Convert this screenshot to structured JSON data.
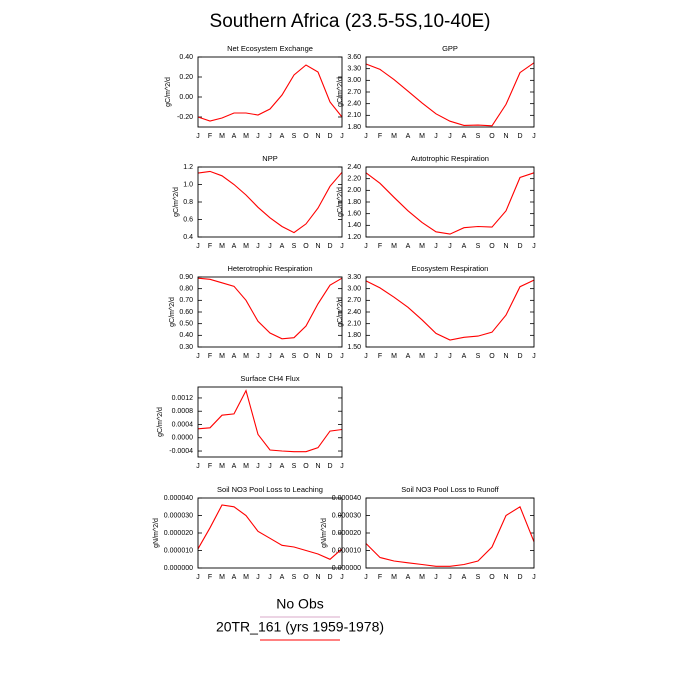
{
  "title": "Southern Africa (23.5-5S,10-40E)",
  "legend": [
    {
      "label": "No Obs",
      "color": "#d8a8c8"
    },
    {
      "label": "20TR_161 (yrs 1959-1978)",
      "color": "#ff0000"
    }
  ],
  "chart_data": [
    {
      "type": "line",
      "title": "Net Ecosystem Exchange",
      "ylabel": "gC/m^2/d",
      "color": "#ff0000",
      "categories": [
        "J",
        "F",
        "M",
        "A",
        "M",
        "J",
        "J",
        "A",
        "S",
        "O",
        "N",
        "D",
        "J"
      ],
      "values": [
        -0.2,
        -0.24,
        -0.21,
        -0.16,
        -0.16,
        -0.18,
        -0.12,
        0.02,
        0.22,
        0.32,
        0.25,
        -0.05,
        -0.2
      ],
      "ylim": [
        -0.3,
        0.4
      ],
      "yticks": [
        {
          "value": -0.2,
          "label": "-0.20"
        },
        {
          "value": 0,
          "label": "0.00"
        },
        {
          "value": 0.2,
          "label": "0.20"
        },
        {
          "value": 0.4,
          "label": "0.40"
        }
      ]
    },
    {
      "type": "line",
      "title": "GPP",
      "ylabel": "gC/m^2/d",
      "color": "#ff0000",
      "categories": [
        "J",
        "F",
        "M",
        "A",
        "M",
        "J",
        "J",
        "A",
        "S",
        "O",
        "N",
        "D",
        "J"
      ],
      "values": [
        3.42,
        3.28,
        3.02,
        2.72,
        2.42,
        2.14,
        1.95,
        1.84,
        1.85,
        1.83,
        2.38,
        3.2,
        3.45
      ],
      "ylim": [
        1.8,
        3.6
      ],
      "yticks": [
        {
          "value": 1.8,
          "label": "1.80"
        },
        {
          "value": 2.1,
          "label": "2.10"
        },
        {
          "value": 2.4,
          "label": "2.40"
        },
        {
          "value": 2.7,
          "label": "2.70"
        },
        {
          "value": 3.0,
          "label": "3.00"
        },
        {
          "value": 3.3,
          "label": "3.30"
        },
        {
          "value": 3.6,
          "label": "3.60"
        }
      ]
    },
    {
      "type": "line",
      "title": "NPP",
      "ylabel": "gC/m^2/d",
      "color": "#ff0000",
      "categories": [
        "J",
        "F",
        "M",
        "A",
        "M",
        "J",
        "J",
        "A",
        "S",
        "O",
        "N",
        "D",
        "J"
      ],
      "values": [
        1.13,
        1.15,
        1.1,
        1.0,
        0.88,
        0.74,
        0.62,
        0.52,
        0.45,
        0.55,
        0.73,
        0.98,
        1.14
      ],
      "ylim": [
        0.4,
        1.2
      ],
      "yticks": [
        0.4,
        0.6,
        0.8,
        {
          "value": 1.0,
          "label": "1.0"
        },
        1.2
      ]
    },
    {
      "type": "line",
      "title": "Autotrophic Respiration",
      "ylabel": "gC/m^2/d",
      "color": "#ff0000",
      "categories": [
        "J",
        "F",
        "M",
        "A",
        "M",
        "J",
        "J",
        "A",
        "S",
        "O",
        "N",
        "D",
        "J"
      ],
      "values": [
        2.3,
        2.12,
        1.88,
        1.65,
        1.45,
        1.29,
        1.25,
        1.36,
        1.38,
        1.37,
        1.65,
        2.22,
        2.3
      ],
      "ylim": [
        1.2,
        2.4
      ],
      "yticks": [
        {
          "value": 1.2,
          "label": "1.20"
        },
        {
          "value": 1.4,
          "label": "1.40"
        },
        {
          "value": 1.6,
          "label": "1.60"
        },
        {
          "value": 1.8,
          "label": "1.80"
        },
        {
          "value": 2.0,
          "label": "2.00"
        },
        {
          "value": 2.2,
          "label": "2.20"
        },
        {
          "value": 2.4,
          "label": "2.40"
        }
      ]
    },
    {
      "type": "line",
      "title": "Heterotrophic Respiration",
      "ylabel": "gC/m^2/d",
      "color": "#ff0000",
      "categories": [
        "J",
        "F",
        "M",
        "A",
        "M",
        "J",
        "J",
        "A",
        "S",
        "O",
        "N",
        "D",
        "J"
      ],
      "values": [
        0.89,
        0.88,
        0.85,
        0.82,
        0.7,
        0.52,
        0.42,
        0.37,
        0.38,
        0.48,
        0.67,
        0.83,
        0.89
      ],
      "ylim": [
        0.3,
        0.9
      ],
      "yticks": [
        {
          "value": 0.3,
          "label": "0.30"
        },
        {
          "value": 0.4,
          "label": "0.40"
        },
        {
          "value": 0.5,
          "label": "0.50"
        },
        {
          "value": 0.6,
          "label": "0.60"
        },
        {
          "value": 0.7,
          "label": "0.70"
        },
        {
          "value": 0.8,
          "label": "0.80"
        },
        {
          "value": 0.9,
          "label": "0.90"
        }
      ]
    },
    {
      "type": "line",
      "title": "Ecosystem Respiration",
      "ylabel": "gC/m^2/d",
      "color": "#ff0000",
      "categories": [
        "J",
        "F",
        "M",
        "A",
        "M",
        "J",
        "J",
        "A",
        "S",
        "O",
        "N",
        "D",
        "J"
      ],
      "values": [
        3.2,
        3.02,
        2.78,
        2.52,
        2.2,
        1.85,
        1.68,
        1.75,
        1.78,
        1.88,
        2.32,
        3.05,
        3.22
      ],
      "ylim": [
        1.5,
        3.3
      ],
      "yticks": [
        {
          "value": 1.5,
          "label": "1.50"
        },
        {
          "value": 1.8,
          "label": "1.80"
        },
        {
          "value": 2.1,
          "label": "2.10"
        },
        {
          "value": 2.4,
          "label": "2.40"
        },
        {
          "value": 2.7,
          "label": "2.70"
        },
        {
          "value": 3.0,
          "label": "3.00"
        },
        {
          "value": 3.3,
          "label": "3.30"
        }
      ]
    },
    {
      "type": "line",
      "title": "Surface CH4 Flux",
      "ylabel": "gC/m^2/d",
      "color": "#ff0000",
      "categories": [
        "J",
        "F",
        "M",
        "A",
        "M",
        "J",
        "J",
        "A",
        "S",
        "O",
        "N",
        "D",
        "J"
      ],
      "values": [
        0.00027,
        0.0003,
        0.00068,
        0.00072,
        0.00142,
        0.0001,
        -0.00037,
        -0.0004,
        -0.00042,
        -0.00042,
        -0.0003,
        0.0002,
        0.00025
      ],
      "ylim": [
        -0.00058,
        0.00153
      ],
      "yticks": [
        -0.0004,
        {
          "value": 0,
          "label": "0.0000"
        },
        0.0004,
        0.0008,
        0.0012
      ]
    },
    {
      "type": "line",
      "title": "Soil NO3 Pool Loss to Leaching",
      "ylabel": "gN/m^2/d",
      "color": "#ff0000",
      "categories": [
        "J",
        "F",
        "M",
        "A",
        "M",
        "J",
        "J",
        "A",
        "S",
        "O",
        "N",
        "D",
        "J"
      ],
      "values": [
        1.1e-05,
        2.3e-05,
        3.6e-05,
        3.5e-05,
        3e-05,
        2.1e-05,
        1.7e-05,
        1.3e-05,
        1.2e-05,
        1e-05,
        8e-06,
        5e-06,
        1.1e-05
      ],
      "ylim": [
        0,
        4e-05
      ],
      "yticks": [
        {
          "value": 0,
          "label": "0.000000"
        },
        {
          "value": 1e-05,
          "label": "0.000010"
        },
        {
          "value": 2e-05,
          "label": "0.000020"
        },
        {
          "value": 3e-05,
          "label": "0.000030"
        },
        {
          "value": 4e-05,
          "label": "0.000040"
        }
      ]
    },
    {
      "type": "line",
      "title": "Soil NO3 Pool Loss to Runoff",
      "ylabel": "gN/m^2/d",
      "color": "#ff0000",
      "categories": [
        "J",
        "F",
        "M",
        "A",
        "M",
        "J",
        "J",
        "A",
        "S",
        "O",
        "N",
        "D",
        "J"
      ],
      "values": [
        1.4e-05,
        6e-06,
        4e-06,
        3e-06,
        2e-06,
        1e-06,
        1e-06,
        2e-06,
        4e-06,
        1.2e-05,
        3e-05,
        3.5e-05,
        1.5e-05
      ],
      "ylim": [
        0,
        4e-05
      ],
      "yticks": [
        {
          "value": 0,
          "label": "0.000000"
        },
        {
          "value": 1e-05,
          "label": "0.000010"
        },
        {
          "value": 2e-05,
          "label": "0.000020"
        },
        {
          "value": 3e-05,
          "label": "0.000030"
        },
        {
          "value": 4e-05,
          "label": "0.000040"
        }
      ]
    }
  ]
}
